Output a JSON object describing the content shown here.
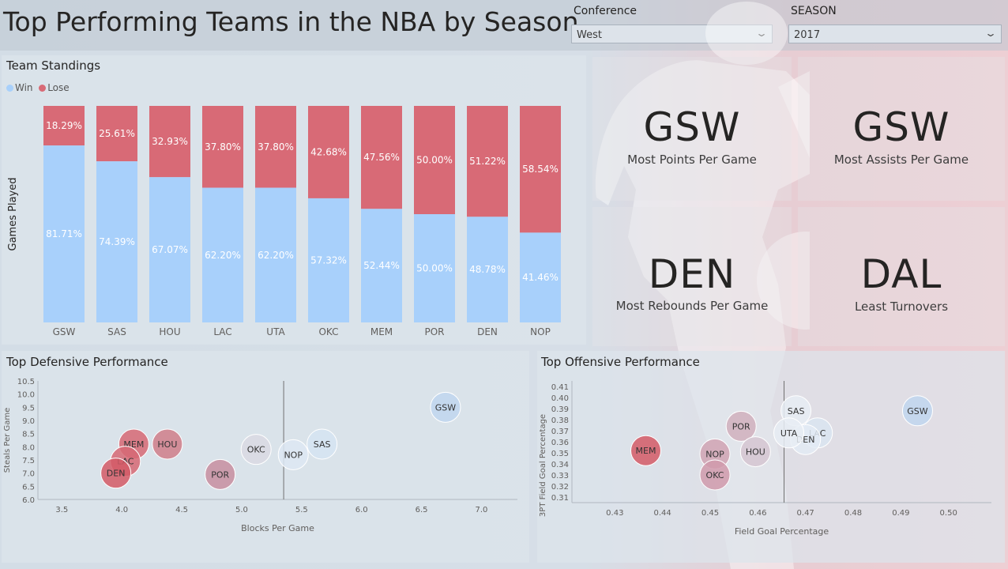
{
  "header": {
    "title": "Top Performing Teams in the NBA by Season",
    "conference_label": "Conference",
    "conference_value": "West",
    "season_label": "SEASON",
    "season_value": "2017"
  },
  "standings": {
    "title": "Team Standings",
    "legend_win": "Win",
    "legend_lose": "Lose",
    "ylabel": "Games Played"
  },
  "kpis": [
    {
      "team": "GSW",
      "caption": "Most Points Per Game"
    },
    {
      "team": "GSW",
      "caption": "Most Assists Per Game"
    },
    {
      "team": "DEN",
      "caption": "Most Rebounds Per Game"
    },
    {
      "team": "DAL",
      "caption": "Least Turnovers"
    }
  ],
  "colors": {
    "win": "#a8d0fb",
    "lose": "#d86a76"
  },
  "chart_data": [
    {
      "type": "bar",
      "stacked": true,
      "title": "Team Standings",
      "ylabel": "Games Played",
      "categories": [
        "GSW",
        "SAS",
        "HOU",
        "LAC",
        "UTA",
        "OKC",
        "MEM",
        "POR",
        "DEN",
        "NOP"
      ],
      "series": [
        {
          "name": "Win",
          "values": [
            81.71,
            74.39,
            67.07,
            62.2,
            62.2,
            57.32,
            52.44,
            50.0,
            48.78,
            41.46
          ],
          "labels": [
            "81.71%",
            "74.39%",
            "67.07%",
            "62.20%",
            "62.20%",
            "57.32%",
            "52.44%",
            "50.00%",
            "48.78%",
            "41.46%"
          ]
        },
        {
          "name": "Lose",
          "values": [
            18.29,
            25.61,
            32.93,
            37.8,
            37.8,
            42.68,
            47.56,
            50.0,
            51.22,
            58.54
          ],
          "labels": [
            "18.29%",
            "25.61%",
            "32.93%",
            "37.80%",
            "37.80%",
            "42.68%",
            "47.56%",
            "50.00%",
            "51.22%",
            "58.54%"
          ]
        }
      ],
      "legend": "top-left"
    },
    {
      "type": "scatter",
      "title": "Top Defensive Performance",
      "xlabel": "Blocks Per Game",
      "ylabel": "Steals Per Game",
      "xlim": [
        3.3,
        7.3
      ],
      "ylim": [
        6.0,
        10.5
      ],
      "xticks": [
        "3.5",
        "4.0",
        "4.5",
        "5.0",
        "5.5",
        "6.0",
        "6.5",
        "7.0"
      ],
      "yticks": [
        "6.0",
        "6.5",
        "7.0",
        "7.5",
        "8.0",
        "8.5",
        "9.0",
        "9.5",
        "10.0",
        "10.5"
      ],
      "ref_x": 5.35,
      "points": [
        {
          "team": "GSW",
          "x": 6.7,
          "y": 9.5,
          "color": "#bfd6ee"
        },
        {
          "team": "SAS",
          "x": 5.67,
          "y": 8.1,
          "color": "#d5e4f2"
        },
        {
          "team": "NOP",
          "x": 5.43,
          "y": 7.7,
          "color": "#dde8f3"
        },
        {
          "team": "OKC",
          "x": 5.12,
          "y": 7.9,
          "color": "#d9d9e3"
        },
        {
          "team": "POR",
          "x": 4.82,
          "y": 6.95,
          "color": "#c78ea0"
        },
        {
          "team": "HOU",
          "x": 4.38,
          "y": 8.1,
          "color": "#cf7e8a"
        },
        {
          "team": "MEM",
          "x": 4.1,
          "y": 8.1,
          "color": "#d66874"
        },
        {
          "team": "LAC",
          "x": 4.03,
          "y": 7.45,
          "color": "#d66874"
        },
        {
          "team": "DEN",
          "x": 3.95,
          "y": 7.0,
          "color": "#d45a66"
        }
      ]
    },
    {
      "type": "scatter",
      "title": "Top Offensive Performance",
      "xlabel": "Field Goal Percentage",
      "ylabel": "3PT Field Goal Percentage",
      "xlim": [
        0.421,
        0.509
      ],
      "ylim": [
        0.305,
        0.415
      ],
      "xticks": [
        "0.43",
        "0.44",
        "0.45",
        "0.46",
        "0.47",
        "0.48",
        "0.49",
        "0.50"
      ],
      "yticks": [
        "0.31",
        "0.32",
        "0.33",
        "0.34",
        "0.35",
        "0.36",
        "0.37",
        "0.38",
        "0.39",
        "0.40",
        "0.41"
      ],
      "ref_x": 0.4655,
      "points": [
        {
          "team": "GSW",
          "x": 0.4935,
          "y": 0.388,
          "color": "#bfd6ee"
        },
        {
          "team": "SAS",
          "x": 0.468,
          "y": 0.388,
          "color": "#e7edf5"
        },
        {
          "team": "LAC",
          "x": 0.4725,
          "y": 0.368,
          "color": "#d9e5f1"
        },
        {
          "team": "DEN",
          "x": 0.47,
          "y": 0.362,
          "color": "#e3ebf4"
        },
        {
          "team": "UTA",
          "x": 0.4665,
          "y": 0.368,
          "color": "#e7edf5"
        },
        {
          "team": "POR",
          "x": 0.4565,
          "y": 0.374,
          "color": "#d0b0bd"
        },
        {
          "team": "HOU",
          "x": 0.4595,
          "y": 0.351,
          "color": "#d5c5d1"
        },
        {
          "team": "NOP",
          "x": 0.451,
          "y": 0.349,
          "color": "#d0a3b3"
        },
        {
          "team": "OKC",
          "x": 0.451,
          "y": 0.33,
          "color": "#d09aab"
        },
        {
          "team": "MEM",
          "x": 0.4365,
          "y": 0.352,
          "color": "#d45a66"
        }
      ]
    }
  ]
}
